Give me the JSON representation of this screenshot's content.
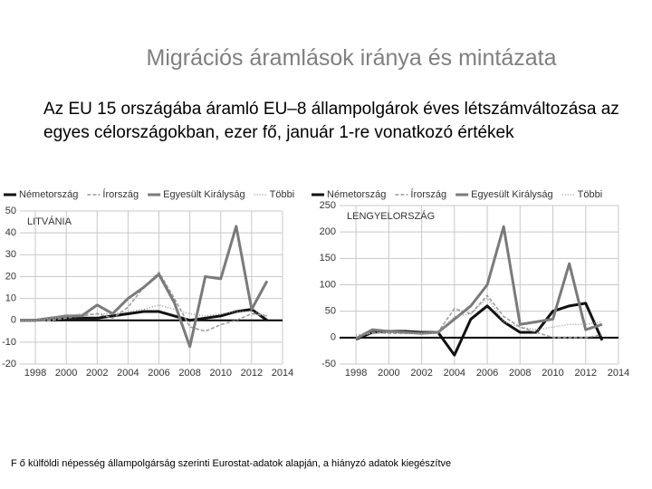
{
  "header": {
    "title": "Migrációs áramlások iránya és mintázata",
    "subtitle": "Az EU 15 országába áramló EU–8 állampolgárok éves létszámváltozása az egyes célországokban, ezer fő, január 1-re vonatkozó értékek"
  },
  "footer": "F ő külföldi népesség állampolgárság szerinti Eurostat-adatok alapján, a hiányzó adatok kiegészítve",
  "chart_data": [
    {
      "type": "line",
      "label": "LITVÁNIA",
      "x": [
        1997,
        1998,
        1999,
        2000,
        2001,
        2002,
        2003,
        2004,
        2005,
        2006,
        2007,
        2008,
        2009,
        2010,
        2011,
        2012,
        2013
      ],
      "xlim": [
        1997,
        2014
      ],
      "xticks": [
        1998,
        2000,
        2002,
        2004,
        2006,
        2008,
        2010,
        2012,
        2014
      ],
      "ylim": [
        -20,
        50
      ],
      "yticks": [
        -20,
        -10,
        0,
        10,
        20,
        30,
        40,
        50
      ],
      "grid": true,
      "series": [
        {
          "name": "Németország",
          "color": "#111111",
          "width": 3,
          "dash": "none",
          "values": [
            0,
            0,
            1,
            1,
            1,
            1,
            2,
            3,
            4,
            4,
            2,
            0,
            1,
            2,
            4,
            5,
            0
          ]
        },
        {
          "name": "Írország",
          "color": "#9a9a9a",
          "width": 1.5,
          "dash": "4 2",
          "values": [
            0,
            0,
            0,
            1,
            2,
            3,
            1,
            6,
            15,
            22,
            10,
            -3,
            -5,
            -2,
            0,
            3,
            2
          ]
        },
        {
          "name": "Egyesült Királyság",
          "color": "#7a7a7a",
          "width": 3,
          "dash": "none",
          "values": [
            0,
            0,
            1,
            2,
            2,
            7,
            3,
            10,
            15,
            21,
            8,
            -12,
            20,
            19,
            43,
            5,
            18
          ]
        },
        {
          "name": "Többi",
          "color": "#9a9a9a",
          "width": 1.5,
          "dash": "1 2",
          "values": [
            0,
            0,
            1,
            2,
            3,
            3,
            3,
            4,
            5,
            7,
            5,
            3,
            2,
            3,
            4,
            4,
            2
          ]
        }
      ]
    },
    {
      "type": "line",
      "label": "LENGYELORSZÁG",
      "x": [
        1997,
        1998,
        1999,
        2000,
        2001,
        2002,
        2003,
        2004,
        2005,
        2006,
        2007,
        2008,
        2009,
        2010,
        2011,
        2012,
        2013
      ],
      "xlim": [
        1997,
        2014
      ],
      "xticks": [
        1998,
        2000,
        2002,
        2004,
        2006,
        2008,
        2010,
        2012,
        2014
      ],
      "ylim": [
        -50,
        250
      ],
      "yticks": [
        -50,
        0,
        50,
        100,
        150,
        200,
        250
      ],
      "grid": true,
      "series": [
        {
          "name": "Németország",
          "color": "#111111",
          "width": 3,
          "dash": "none",
          "values": [
            null,
            -3,
            10,
            12,
            12,
            10,
            10,
            -33,
            35,
            60,
            30,
            10,
            10,
            50,
            60,
            65,
            -5
          ]
        },
        {
          "name": "Írország",
          "color": "#9a9a9a",
          "width": 1.5,
          "dash": "4 2",
          "values": [
            null,
            0,
            10,
            8,
            8,
            8,
            10,
            55,
            45,
            80,
            40,
            20,
            10,
            0,
            0,
            0,
            5
          ]
        },
        {
          "name": "Egyesült Királyság",
          "color": "#7a7a7a",
          "width": 3,
          "dash": "none",
          "values": [
            null,
            -2,
            15,
            12,
            10,
            8,
            10,
            35,
            60,
            100,
            210,
            25,
            30,
            35,
            140,
            15,
            25
          ]
        },
        {
          "name": "Többi",
          "color": "#9a9a9a",
          "width": 1.5,
          "dash": "1 2",
          "values": [
            null,
            5,
            8,
            10,
            8,
            8,
            8,
            40,
            45,
            75,
            30,
            20,
            15,
            20,
            25,
            25,
            30
          ]
        }
      ]
    }
  ]
}
